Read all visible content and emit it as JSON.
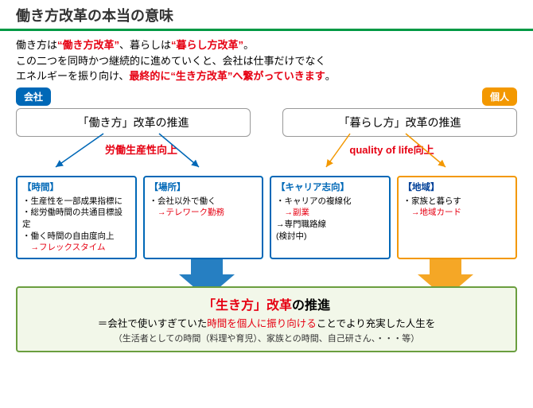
{
  "title": "働き方改革の本当の意味",
  "intro": {
    "text1": "働き方は",
    "em1": "“働き方改革”",
    "text2": "、暮らしは",
    "em2": "“暮らし方改革”",
    "text3": "。",
    "line2": "この二つを同時かつ継続的に進めていくと、会社は仕事だけでなく",
    "line3a": "エネルギーを振り向け、",
    "line3em": "最終的に“生き方改革”へ繋がっていきます",
    "line3b": "。"
  },
  "tag_company": "会社",
  "tag_personal": "個人",
  "main_left": "「働き方」改革の推進",
  "main_right": "「暮らし方」改革の推進",
  "sub_left_label": "労働生産性向上",
  "sub_right_label": "quality of life向上",
  "boxes": [
    {
      "heading": "【時間】",
      "lines": [
        "・生産性を一部成果指標に",
        "・総労働時間の共通目標設定",
        "・働く時間の自由度向上"
      ],
      "arrow": "→フレックスタイム",
      "color": "blue"
    },
    {
      "heading": "【場所】",
      "lines": [
        "・会社以外で働く"
      ],
      "arrow": "→テレワーク勤務",
      "color": "blue"
    },
    {
      "heading": "【キャリア志向】",
      "lines": [
        "・キャリアの複線化"
      ],
      "arrow": "→副業",
      "extra": [
        "→専門職路線",
        "  (検討中)"
      ],
      "color": "blue"
    },
    {
      "heading": "【地域】",
      "lines": [
        "・家族と暮らす"
      ],
      "arrow": "→地域カード",
      "color": "orange"
    }
  ],
  "bottom": {
    "line1a": "「生き方」改革",
    "line1b": "の推進",
    "line2a": "＝会社で使いすぎていた",
    "line2em": "時間を個人に振り向ける",
    "line2b": "ことでより充実した人生を",
    "line3": "（生活者としての時間（料理や育児）、家族との時間、自己研さん、・・・等）"
  },
  "colors": {
    "green": "#009944",
    "red": "#e60012",
    "blue": "#0068b7",
    "orange": "#f39800",
    "box_green_border": "#6a9e3f",
    "box_green_bg": "#f2f7e9"
  }
}
